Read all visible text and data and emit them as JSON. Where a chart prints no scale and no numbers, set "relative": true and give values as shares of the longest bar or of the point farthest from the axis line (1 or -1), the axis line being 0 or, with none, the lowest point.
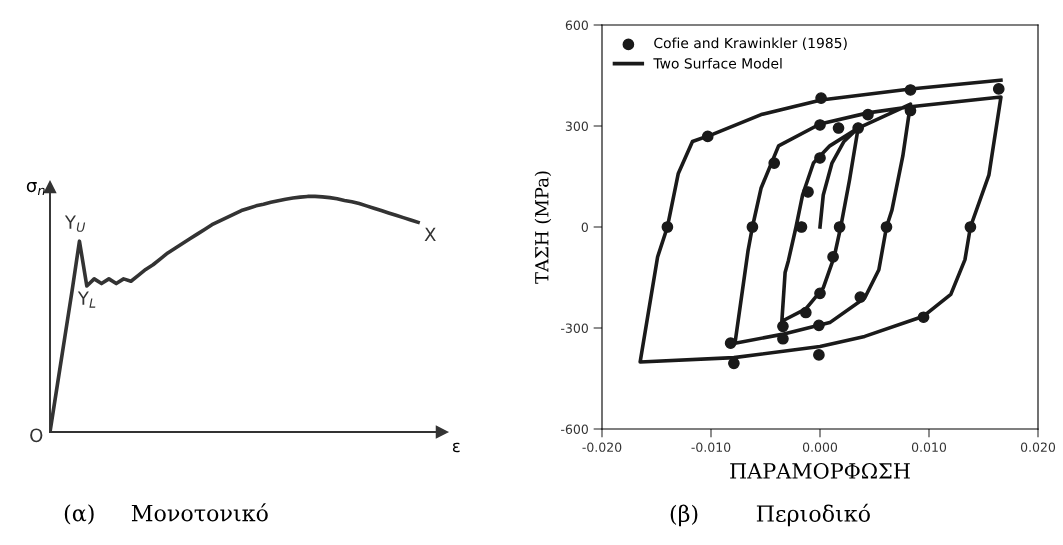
{
  "chart_data": [
    {
      "type": "line",
      "relative": true,
      "title": "(α)     Μονοτονικό",
      "xlabel": "ε",
      "ylabel": "σ$_{n}$",
      "color": "#333333",
      "categories": [
        null,
        null,
        null,
        null,
        null,
        null,
        null,
        null,
        null,
        null,
        null,
        null,
        null,
        null,
        null,
        null,
        null,
        null,
        null,
        null,
        null,
        null,
        null,
        null,
        null,
        null,
        null,
        null,
        null,
        null,
        null,
        null,
        null,
        null,
        null,
        null,
        null,
        null,
        null,
        null,
        null,
        null,
        null,
        null,
        null,
        null,
        null,
        null,
        null,
        null,
        null
      ],
      "values": [
        0,
        0.2,
        0.4,
        0.6,
        0.81,
        0.62,
        0.65,
        0.63,
        0.65,
        0.63,
        0.65,
        0.64,
        0.665,
        0.69,
        0.71,
        0.735,
        0.76,
        0.78,
        0.8,
        0.82,
        0.84,
        0.86,
        0.88,
        0.895,
        0.91,
        0.925,
        0.94,
        0.95,
        0.96,
        0.967,
        0.975,
        0.982,
        0.988,
        0.993,
        0.997,
        1.0,
        1.0,
        0.998,
        0.995,
        0.99,
        0.983,
        0.977,
        0.97,
        0.96,
        0.95,
        0.94,
        0.93,
        0.92,
        0.91,
        0.9,
        0.89
      ],
      "annotations": [
        "O",
        "Y$_{U}$",
        "Y$_{L}$",
        "X"
      ]
    },
    {
      "type": "line",
      "title": "(β)        Περιοδικό",
      "xlabel": "ΠΑΡΑΜΟΡΦΩΣΗ",
      "ylabel": "ΤΑΣΗ (MPa)",
      "legend": "top left",
      "grid": false,
      "xlim": [
        -0.02,
        0.02
      ],
      "xticks": [
        {
          "value": -0.02,
          "label": "-0.020"
        },
        {
          "value": -0.01,
          "label": "-0.010"
        },
        {
          "value": 0,
          "label": "0.000"
        },
        {
          "value": 0.01,
          "label": "0.010"
        },
        {
          "value": 0.02,
          "label": "0.020"
        }
      ],
      "ylim": [
        -600,
        600
      ],
      "yticks": [
        -600,
        -300,
        0,
        300,
        600
      ],
      "series": [
        {
          "name": "Cofie and Krawinkler (1985)",
          "type": "scatter",
          "marker": "circle",
          "color": "#1a1a1a",
          "x": [
            -0.0103,
            0.0001,
            0.0083,
            0.0164,
            0.0,
            0.0044,
            0.0083,
            -0.0042,
            0.0017,
            0.0035,
            0.0,
            -0.0011,
            -0.014,
            -0.0062,
            -0.0017,
            0.0018,
            0.0061,
            0.0138,
            0.0012,
            0.0,
            0.0037,
            -0.0013,
            -0.0034,
            -0.0001,
            0.0095,
            -0.0034,
            -0.0082,
            -0.0079,
            -0.0001
          ],
          "values": [
            269,
            383,
            407,
            410,
            303,
            334,
            346,
            190,
            294,
            294,
            205,
            104,
            0,
            0,
            0,
            0,
            0,
            0,
            -89,
            -197,
            -208,
            -254,
            -295,
            -292,
            -268,
            -332,
            -345,
            -405,
            -380
          ]
        },
        {
          "name": "Two Surface Model",
          "type": "line",
          "marker": "none",
          "color": "#1a1a1a",
          "x": [
            0.0,
            0.0003,
            0.0011,
            0.0022,
            0.0035,
            0.0027,
            0.0019,
            0.0013,
            0.0003,
            -0.0013,
            -0.0035,
            -0.0032,
            -0.0029,
            -0.0022,
            -0.0016,
            -0.0006,
            0.0009,
            0.0035,
            0.0083,
            0.0076,
            0.0066,
            0.0061,
            0.0054,
            0.0041,
            0.0009,
            -0.0035,
            -0.0078,
            -0.0066,
            -0.0062,
            -0.0054,
            -0.0038,
            0.0,
            0.0044,
            0.0083,
            0.0166,
            0.0155,
            0.0138,
            0.0133,
            0.012,
            0.0095,
            0.0041,
            0.0,
            -0.0079,
            -0.0165,
            -0.0149,
            -0.014,
            -0.013,
            -0.0117,
            -0.0098,
            -0.0054,
            0.0001,
            0.0083,
            0.0166
          ],
          "values": [
            0,
            95,
            190,
            254,
            294,
            138,
            0,
            -89,
            -181,
            -243,
            -280,
            -135,
            -100,
            0,
            95,
            190,
            241,
            294,
            365,
            211,
            50,
            0,
            -127,
            -211,
            -284,
            -319,
            -345,
            -70,
            0,
            116,
            241,
            306,
            339,
            357,
            386,
            155,
            0,
            -97,
            -200,
            -265,
            -325,
            -355,
            -388,
            -401,
            -89,
            0,
            159,
            254,
            276,
            334,
            377,
            410,
            436
          ]
        }
      ]
    }
  ]
}
